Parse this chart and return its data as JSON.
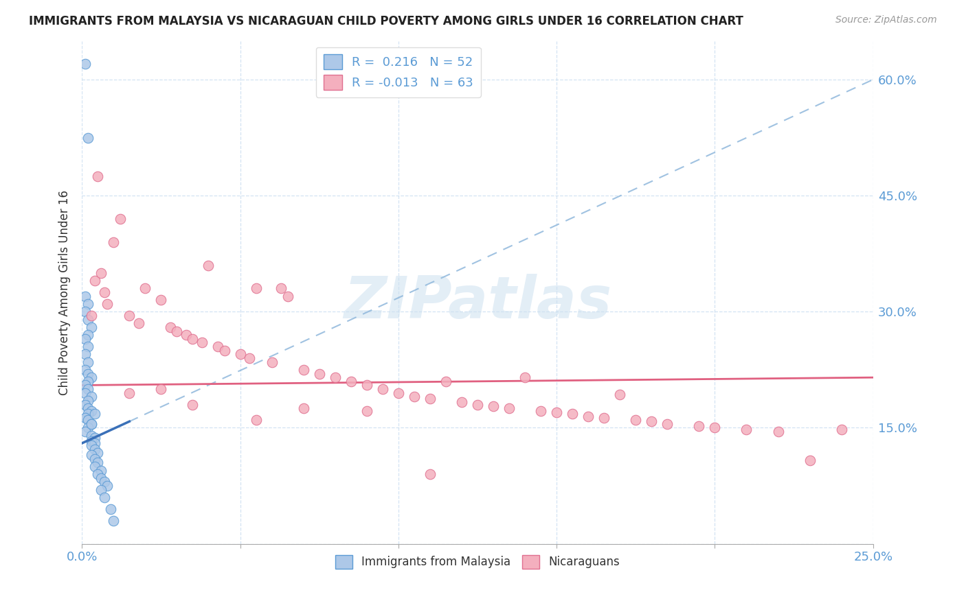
{
  "title": "IMMIGRANTS FROM MALAYSIA VS NICARAGUAN CHILD POVERTY AMONG GIRLS UNDER 16 CORRELATION CHART",
  "source": "Source: ZipAtlas.com",
  "ylabel": "Child Poverty Among Girls Under 16",
  "xlim": [
    0.0,
    0.25
  ],
  "ylim": [
    0.0,
    0.65
  ],
  "blue_r": 0.216,
  "blue_n": 52,
  "pink_r": -0.013,
  "pink_n": 63,
  "blue_color": "#adc8e8",
  "blue_edge": "#5b9bd5",
  "pink_color": "#f4afbe",
  "pink_edge": "#e07090",
  "blue_trend_color": "#3a70b8",
  "blue_dash_color": "#90b8dc",
  "pink_trend_color": "#e06080",
  "watermark": "ZIPatlas",
  "blue_scatter_x": [
    0.001,
    0.002,
    0.001,
    0.002,
    0.001,
    0.002,
    0.003,
    0.002,
    0.001,
    0.002,
    0.001,
    0.002,
    0.001,
    0.002,
    0.003,
    0.002,
    0.001,
    0.002,
    0.001,
    0.003,
    0.002,
    0.001,
    0.002,
    0.003,
    0.002,
    0.001,
    0.002,
    0.003,
    0.002,
    0.001,
    0.003,
    0.004,
    0.003,
    0.004,
    0.003,
    0.004,
    0.005,
    0.003,
    0.004,
    0.005,
    0.004,
    0.006,
    0.005,
    0.006,
    0.007,
    0.008,
    0.006,
    0.007,
    0.009,
    0.01,
    0.004,
    0.003
  ],
  "blue_scatter_y": [
    0.62,
    0.525,
    0.32,
    0.31,
    0.3,
    0.29,
    0.28,
    0.27,
    0.265,
    0.255,
    0.245,
    0.235,
    0.225,
    0.22,
    0.215,
    0.21,
    0.205,
    0.2,
    0.195,
    0.19,
    0.185,
    0.18,
    0.175,
    0.172,
    0.168,
    0.163,
    0.16,
    0.155,
    0.15,
    0.145,
    0.14,
    0.137,
    0.133,
    0.13,
    0.127,
    0.122,
    0.118,
    0.115,
    0.11,
    0.105,
    0.1,
    0.095,
    0.09,
    0.085,
    0.08,
    0.075,
    0.07,
    0.06,
    0.045,
    0.03,
    0.168,
    0.155
  ],
  "pink_scatter_x": [
    0.003,
    0.004,
    0.005,
    0.006,
    0.007,
    0.008,
    0.01,
    0.012,
    0.015,
    0.018,
    0.02,
    0.025,
    0.028,
    0.03,
    0.033,
    0.035,
    0.038,
    0.04,
    0.043,
    0.045,
    0.05,
    0.053,
    0.055,
    0.06,
    0.063,
    0.065,
    0.07,
    0.075,
    0.08,
    0.085,
    0.09,
    0.095,
    0.1,
    0.105,
    0.11,
    0.115,
    0.12,
    0.125,
    0.13,
    0.135,
    0.14,
    0.145,
    0.15,
    0.155,
    0.16,
    0.165,
    0.17,
    0.175,
    0.18,
    0.185,
    0.195,
    0.2,
    0.21,
    0.22,
    0.23,
    0.24,
    0.015,
    0.025,
    0.035,
    0.055,
    0.07,
    0.09,
    0.11
  ],
  "pink_scatter_y": [
    0.295,
    0.34,
    0.475,
    0.35,
    0.325,
    0.31,
    0.39,
    0.42,
    0.295,
    0.285,
    0.33,
    0.315,
    0.28,
    0.275,
    0.27,
    0.265,
    0.26,
    0.36,
    0.255,
    0.25,
    0.245,
    0.24,
    0.33,
    0.235,
    0.33,
    0.32,
    0.225,
    0.22,
    0.215,
    0.21,
    0.205,
    0.2,
    0.195,
    0.19,
    0.188,
    0.21,
    0.183,
    0.18,
    0.178,
    0.175,
    0.215,
    0.172,
    0.17,
    0.168,
    0.165,
    0.163,
    0.193,
    0.16,
    0.158,
    0.155,
    0.152,
    0.15,
    0.148,
    0.145,
    0.108,
    0.148,
    0.195,
    0.2,
    0.18,
    0.16,
    0.175,
    0.172,
    0.09
  ]
}
